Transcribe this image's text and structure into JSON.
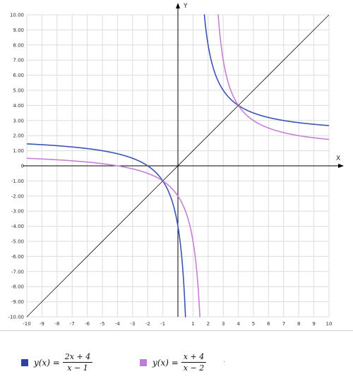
{
  "chart_data": {
    "type": "line",
    "xlabel": "X",
    "ylabel": "Y",
    "xlim": [
      -10,
      10
    ],
    "ylim": [
      -10,
      10
    ],
    "grid": true,
    "x_ticks": [
      "-10",
      "-9",
      "-8",
      "-7",
      "-6",
      "-5",
      "-4",
      "-3",
      "-2",
      "-1",
      "1",
      "2",
      "3",
      "4",
      "5",
      "6",
      "7",
      "8",
      "9",
      "10"
    ],
    "y_ticks": [
      "10.00",
      "9.00",
      "8.00",
      "7.00",
      "6.00",
      "5.00",
      "4.00",
      "3.00",
      "2.00",
      "1.00",
      "0",
      "-1.00",
      "-2.00",
      "-3.00",
      "-4.00",
      "-5.00",
      "-6.00",
      "-7.00",
      "-8.00",
      "-9.00",
      "-10.00"
    ],
    "origin_label": "0",
    "series": [
      {
        "name": "y(x) = (2x + 4)/(x − 1)",
        "formula": "(2x+4)/(x-1)",
        "asymptote_x": 1,
        "color": "#3b53b5"
      },
      {
        "name": "y(x) = (x + 4)/(x − 2)",
        "formula": "(x+4)/(x-2)",
        "asymptote_x": 2,
        "color": "#c77fd6"
      },
      {
        "name": "y = x",
        "formula": "x",
        "color": "#111111"
      }
    ]
  },
  "legend": {
    "item1": {
      "prefix": "y(x) =",
      "num": "2x + 4",
      "den": "x − 1",
      "color": "#2e3fa8"
    },
    "item2": {
      "prefix": "y(x) =",
      "num": "x + 4",
      "den": "x − 2",
      "color": "#b77fd9"
    },
    "dot": "."
  }
}
